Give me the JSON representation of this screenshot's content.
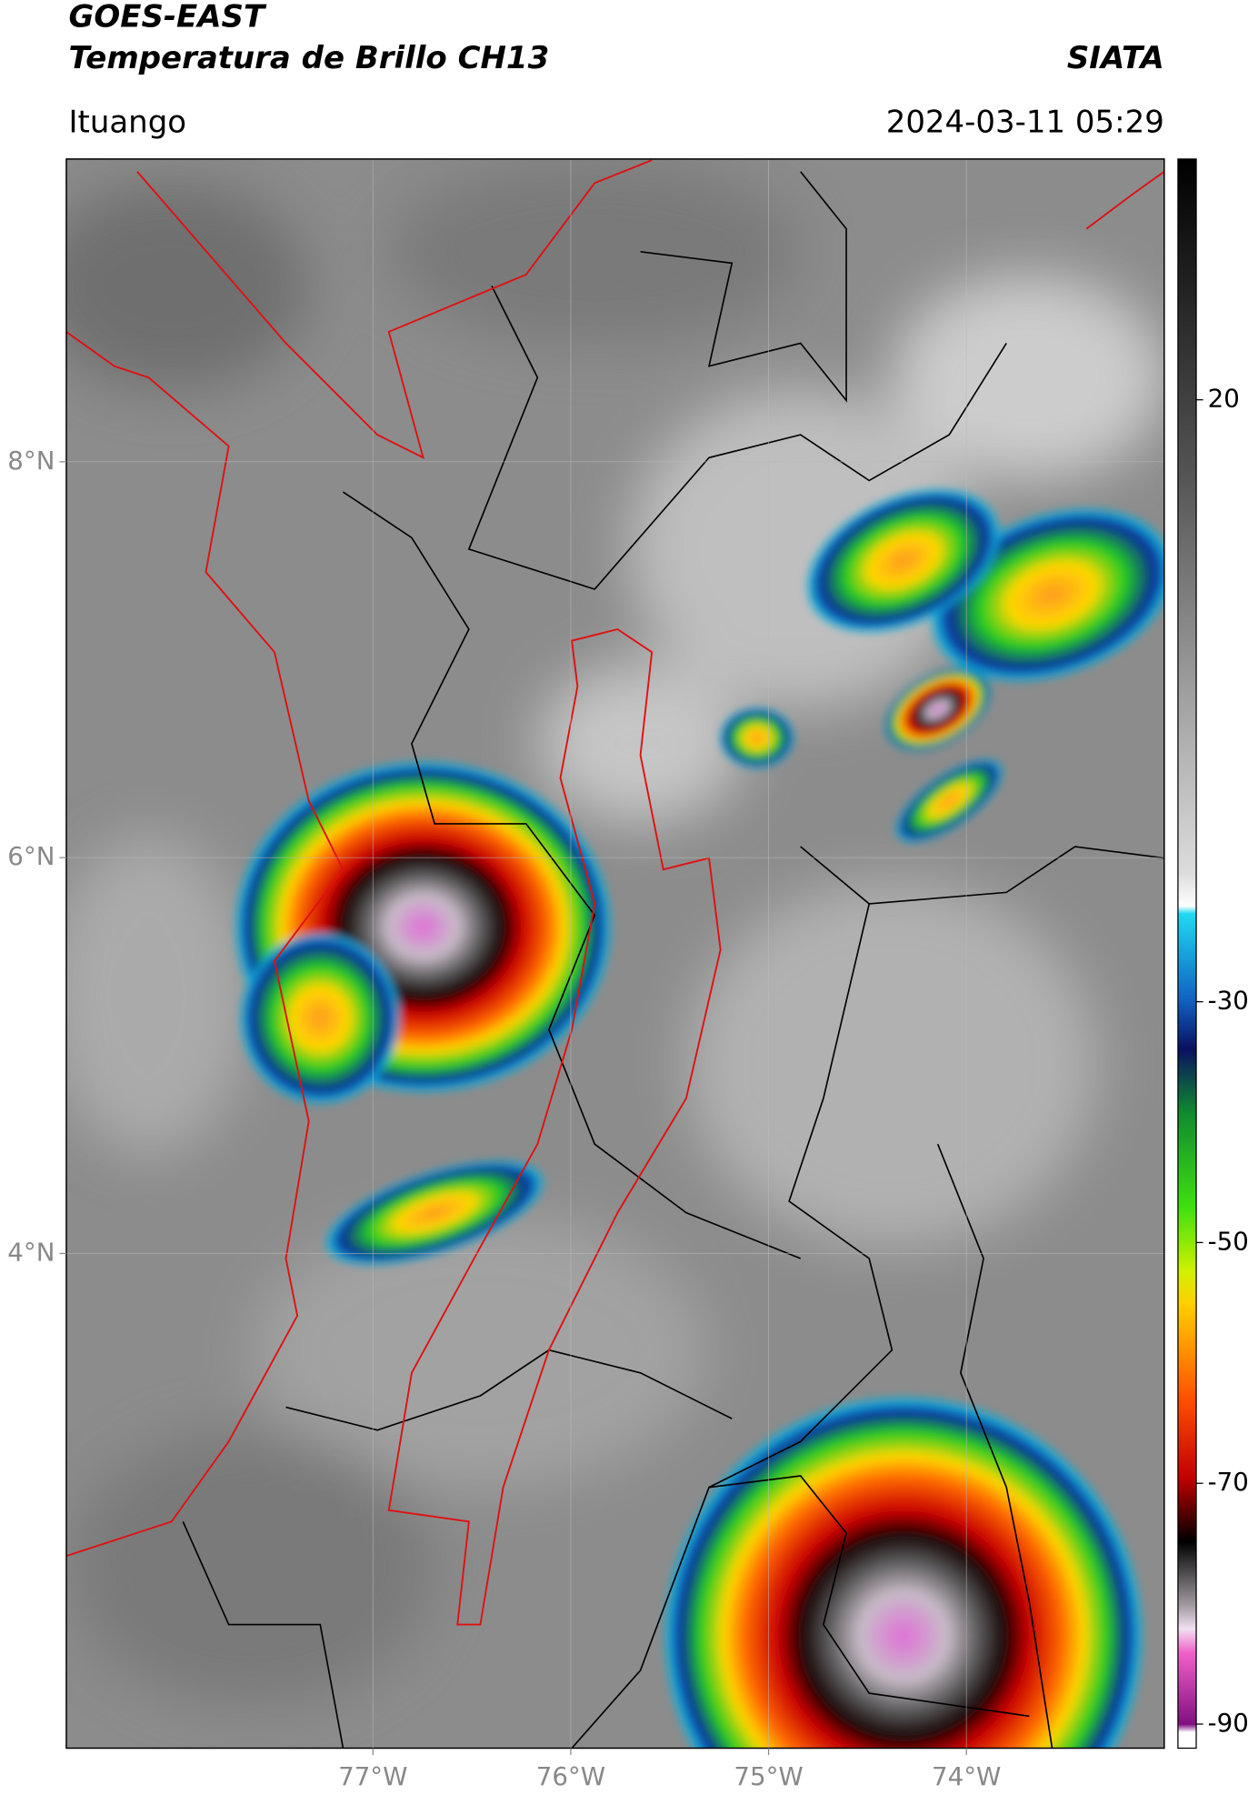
{
  "header": {
    "satellite": "GOES-EAST",
    "product": "Temperatura de Brillo CH13",
    "agency": "SIATA",
    "region": "Ituango",
    "timestamp": "2024-03-11 05:29"
  },
  "map": {
    "lonlim": [
      -78.55,
      -73.0
    ],
    "latlim": [
      1.5,
      9.53
    ],
    "lon_ticks": [
      {
        "value": -77,
        "label": "77°W"
      },
      {
        "value": -76,
        "label": "76°W"
      },
      {
        "value": -75,
        "label": "75°W"
      },
      {
        "value": -74,
        "label": "74°W"
      }
    ],
    "lat_ticks": [
      {
        "value": 8,
        "label": "8°N"
      },
      {
        "value": 6,
        "label": "6°N"
      },
      {
        "value": 4,
        "label": "4°N"
      }
    ],
    "grid": true
  },
  "colorbar": {
    "range": [
      -92,
      40
    ],
    "ticks": [
      20,
      -30,
      -50,
      -70,
      -90
    ]
  }
}
